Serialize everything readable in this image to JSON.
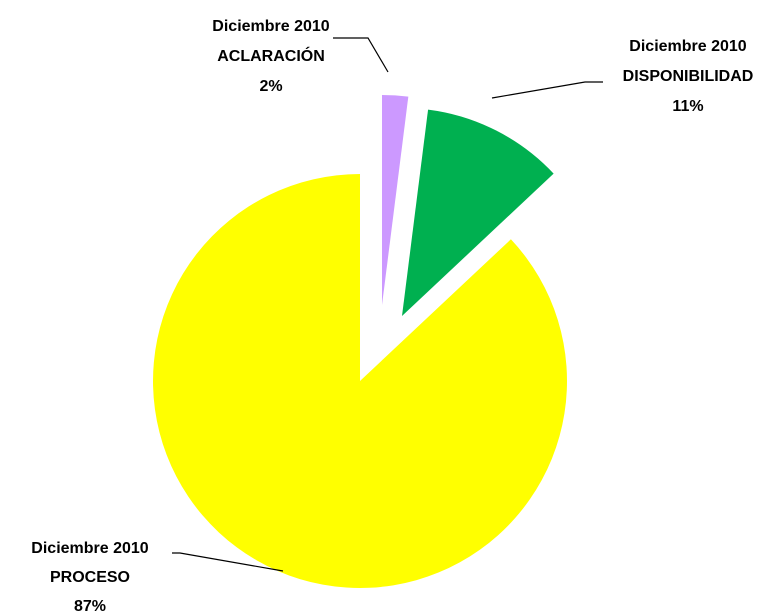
{
  "chart_data": {
    "type": "pie",
    "title": "",
    "start_angle_deg": 0,
    "direction": "clockwise",
    "slices": [
      {
        "series": "Diciembre 2010",
        "category": "ACLARACIÓN",
        "value": 2,
        "percent_label": "2%",
        "color": "#CC99FF",
        "exploded": true
      },
      {
        "series": "Diciembre 2010",
        "category": "DISPONIBILIDAD",
        "value": 11,
        "percent_label": "11%",
        "color": "#00B050",
        "exploded": true
      },
      {
        "series": "Diciembre 2010",
        "category": "PROCESO",
        "value": 87,
        "percent_label": "87%",
        "color": "#FFFF00",
        "exploded": true
      }
    ]
  }
}
